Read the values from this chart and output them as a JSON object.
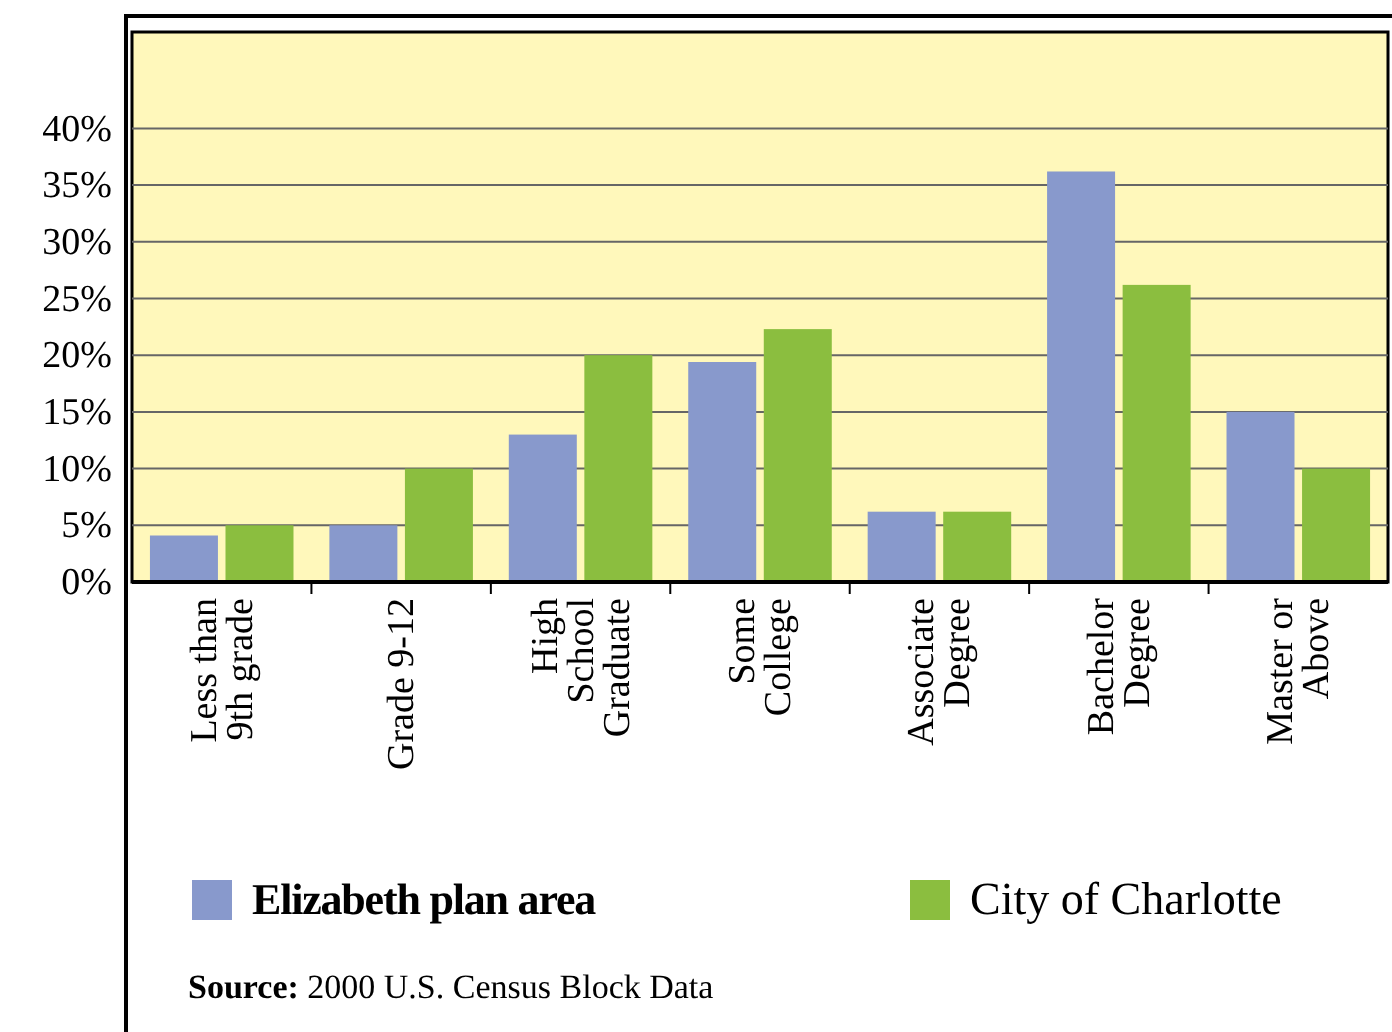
{
  "chart_data": {
    "type": "bar",
    "categories": [
      "Less than 9th grade",
      "Grade 9-12",
      "High School Graduate",
      "Some College",
      "Associate Degree",
      "Bachelor Degree",
      "Master or Above"
    ],
    "series": [
      {
        "name": "Elizabeth plan area",
        "color": "#8899cc",
        "values": [
          4.1,
          5,
          13,
          19.4,
          6.2,
          36.2,
          15
        ]
      },
      {
        "name": "City of Charlotte",
        "color": "#8bbe3f",
        "values": [
          5,
          10,
          20,
          22.3,
          6.2,
          26.2,
          10
        ]
      }
    ],
    "ylim": [
      0,
      48.5
    ],
    "yticks": [
      {
        "value": 0,
        "label": "0%"
      },
      {
        "value": 5,
        "label": "5%"
      },
      {
        "value": 10,
        "label": "10%"
      },
      {
        "value": 15,
        "label": "15%"
      },
      {
        "value": 20,
        "label": "20%"
      },
      {
        "value": 25,
        "label": "25%"
      },
      {
        "value": 30,
        "label": "30%"
      },
      {
        "value": 35,
        "label": "35%"
      },
      {
        "value": 40,
        "label": "40%"
      }
    ],
    "grid": "y",
    "legend": "bottom",
    "annotations": [
      "Source: 2000 U.S. Census Block Data"
    ]
  }
}
